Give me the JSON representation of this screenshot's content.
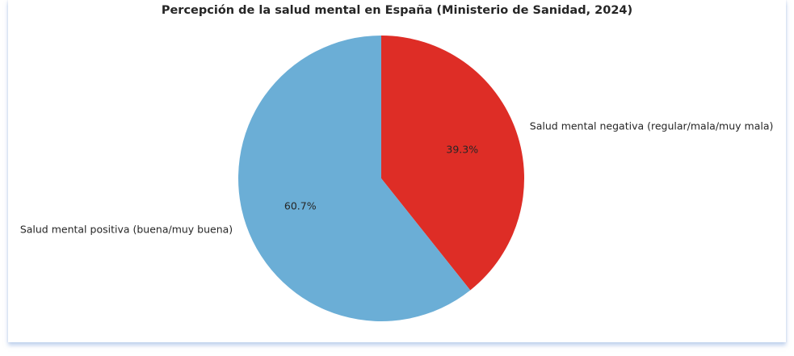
{
  "chart_data": {
    "type": "pie",
    "title": "Percepción de la salud mental en España (Ministerio de Sanidad, 2024)",
    "slices": [
      {
        "label": "Salud mental negativa (regular/mala/muy mala)",
        "value": 39.3,
        "pct_label": "39.3%",
        "color": "#de2d26"
      },
      {
        "label": "Salud mental positiva (buena/muy buena)",
        "value": 60.7,
        "pct_label": "60.7%",
        "color": "#6baed6"
      }
    ],
    "start_angle": "top",
    "direction": "clockwise",
    "legend": "none"
  }
}
